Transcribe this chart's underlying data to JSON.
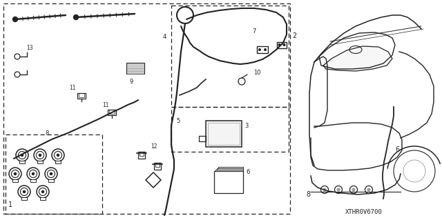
{
  "bg_color": "#ffffff",
  "diagram_code": "XTHR0V6700",
  "fig_width": 6.4,
  "fig_height": 3.19,
  "dpi": 100,
  "lc": "#222222",
  "gray": "#999999",
  "lgray": "#cccccc"
}
